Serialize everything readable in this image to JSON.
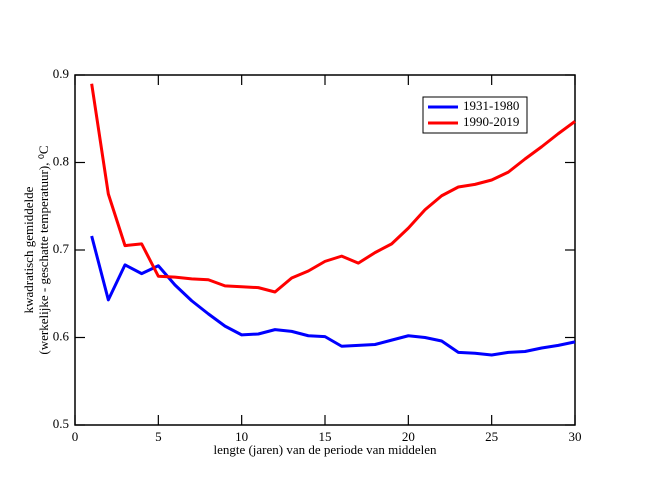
{
  "chart_data": {
    "type": "line",
    "xlabel": "lengte (jaren) van de periode van middelen",
    "ylabel": [
      "kwadratisch gemiddelde",
      "(werkelijke - geschatte temperatuur), ⁰C"
    ],
    "x": [
      1,
      2,
      3,
      4,
      5,
      6,
      7,
      8,
      9,
      10,
      11,
      12,
      13,
      14,
      15,
      16,
      17,
      18,
      19,
      20,
      21,
      22,
      23,
      24,
      25,
      26,
      27,
      28,
      29,
      30
    ],
    "series": [
      {
        "name": "1931-1980",
        "color": "#0000ff",
        "values": [
          0.716,
          0.643,
          0.683,
          0.673,
          0.682,
          0.66,
          0.642,
          0.627,
          0.613,
          0.603,
          0.604,
          0.609,
          0.607,
          0.602,
          0.601,
          0.59,
          0.591,
          0.592,
          0.597,
          0.602,
          0.6,
          0.596,
          0.583,
          0.582,
          0.58,
          0.583,
          0.584,
          0.588,
          0.591,
          0.595
        ]
      },
      {
        "name": "1990-2019",
        "color": "#ff0000",
        "values": [
          0.89,
          0.764,
          0.705,
          0.707,
          0.67,
          0.669,
          0.667,
          0.666,
          0.659,
          0.658,
          0.657,
          0.652,
          0.668,
          0.676,
          0.687,
          0.693,
          0.685,
          0.697,
          0.707,
          0.725,
          0.746,
          0.762,
          0.772,
          0.775,
          0.78,
          0.789,
          0.804,
          0.818,
          0.833,
          0.847
        ]
      }
    ],
    "xlim": [
      0,
      30
    ],
    "xticks": [
      0,
      5,
      10,
      15,
      20,
      25,
      30
    ],
    "ylim": [
      0.5,
      0.9
    ],
    "yticks": [
      0.5,
      0.6,
      0.7,
      0.8,
      0.9
    ],
    "legend": "upper right"
  }
}
